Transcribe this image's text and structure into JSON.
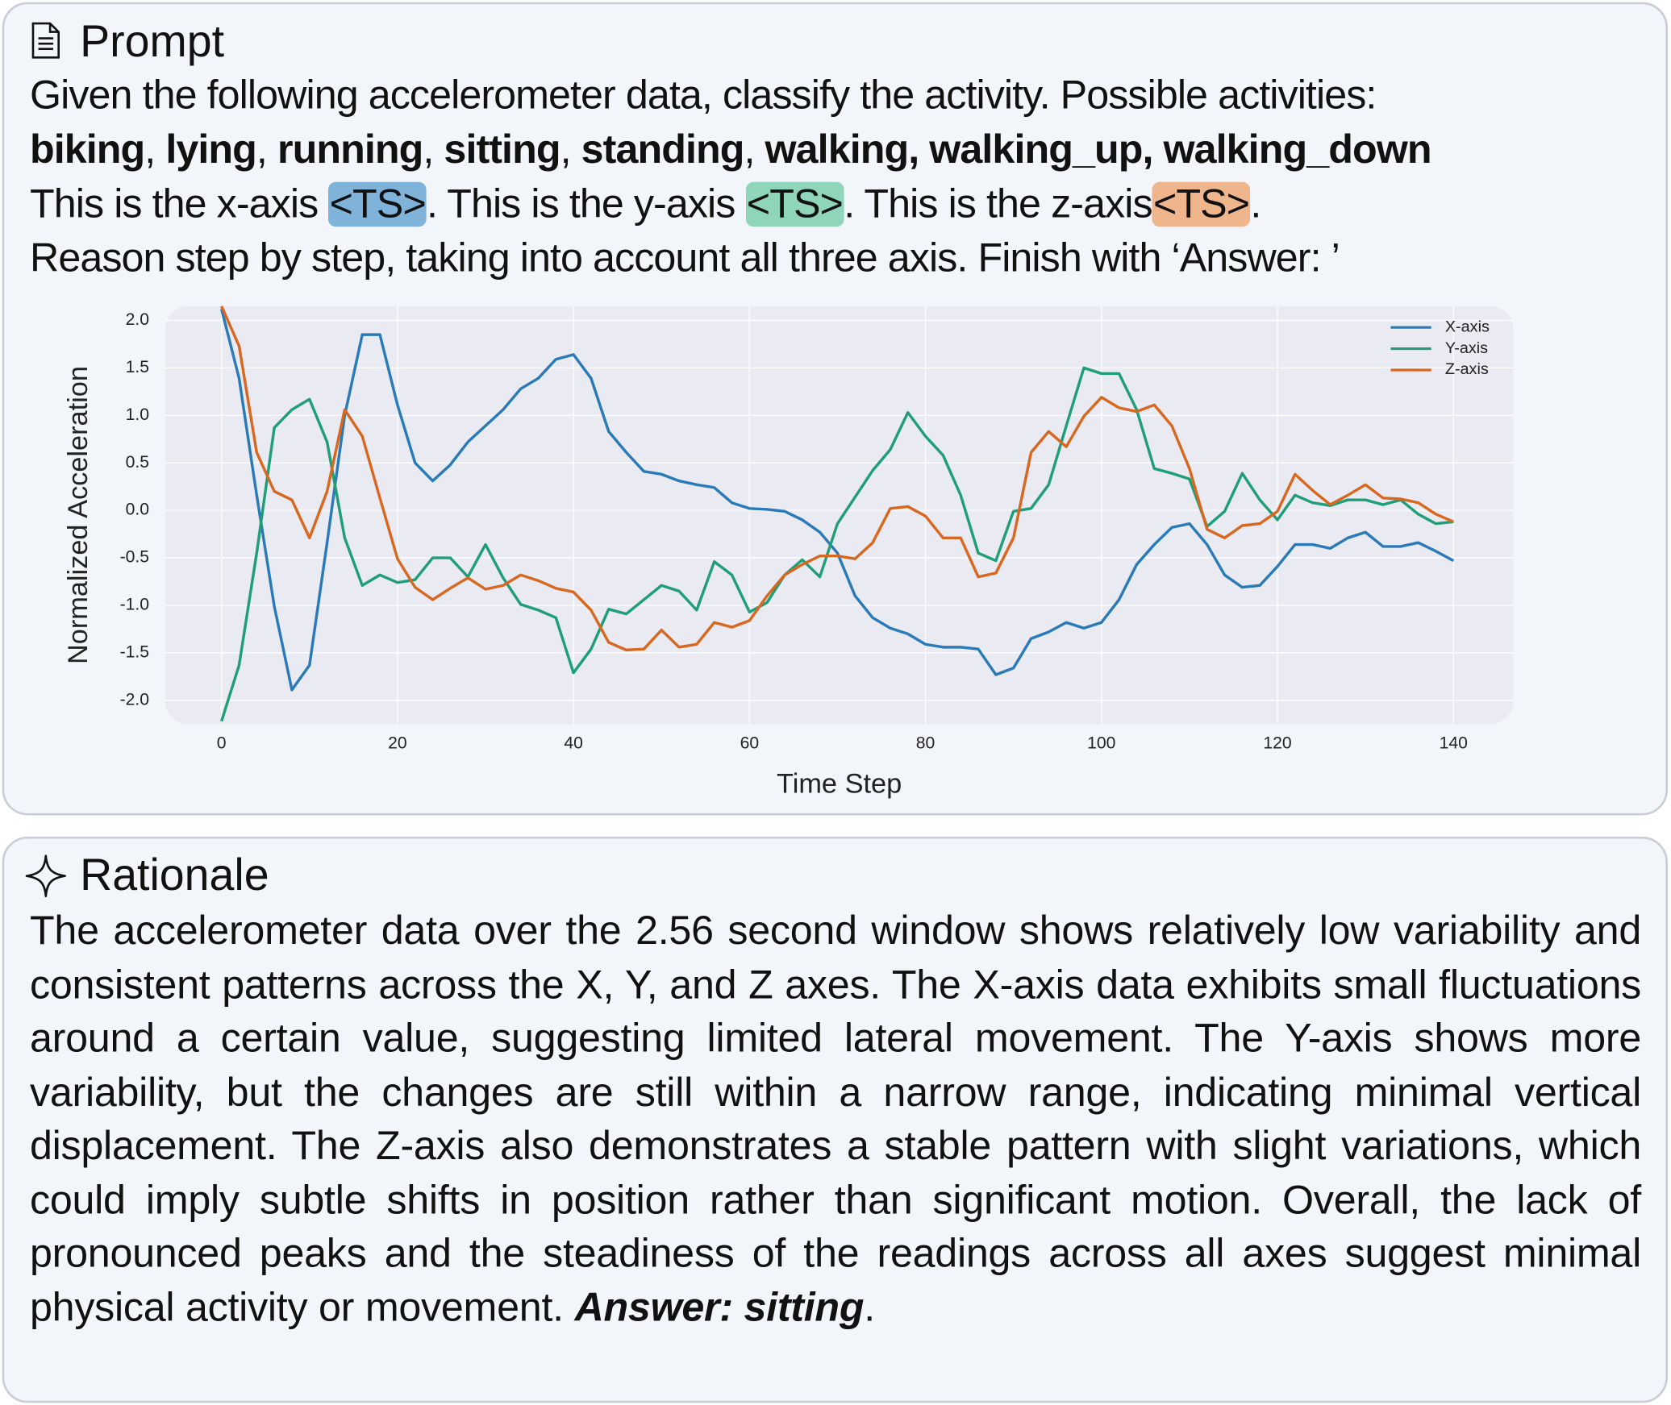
{
  "prompt": {
    "title": "Prompt",
    "lines": [
      [
        {
          "text": "Given the following accelerometer data, classify the activity. Possible activities:"
        }
      ],
      [
        {
          "text": "biking",
          "style": "bold"
        },
        {
          "text": ", "
        },
        {
          "text": "lying",
          "style": "bold"
        },
        {
          "text": ", "
        },
        {
          "text": "running",
          "style": "bold"
        },
        {
          "text": ", "
        },
        {
          "text": "sitting",
          "style": "bold"
        },
        {
          "text": ", "
        },
        {
          "text": "standing",
          "style": "bold"
        },
        {
          "text": ", "
        },
        {
          "text": "walking, walking_up, walking_down",
          "style": "bold"
        }
      ],
      [
        {
          "text": "This is the x-axis "
        },
        {
          "text": "<TS>",
          "highlight": "#7fb3d9"
        },
        {
          "text": ". This is the y-axis "
        },
        {
          "text": "<TS>",
          "highlight": "#8fd5ba"
        },
        {
          "text": ". This is the z-axis"
        },
        {
          "text": "<TS>",
          "highlight": "#efb68e"
        },
        {
          "text": "."
        }
      ],
      [
        {
          "text": "Reason step by step, taking into account all three axis. Finish with ‘Answer: ’"
        }
      ]
    ]
  },
  "chart_data": {
    "type": "line",
    "xlabel": "Time Step",
    "ylabel": "Normalized Acceleration",
    "x": [
      0,
      2,
      4,
      6,
      8,
      10,
      12,
      14,
      16,
      18,
      20,
      22,
      24,
      26,
      28,
      30,
      32,
      34,
      36,
      38,
      40,
      42,
      44,
      46,
      48,
      50,
      52,
      54,
      56,
      58,
      60,
      62,
      64,
      66,
      68,
      70,
      72,
      74,
      76,
      78,
      80,
      82,
      84,
      86,
      88,
      90,
      92,
      94,
      96,
      98,
      100,
      102,
      104,
      106,
      108,
      110,
      112,
      114,
      116,
      118,
      120,
      122,
      124,
      126,
      128,
      130,
      132,
      134,
      136,
      138,
      140
    ],
    "series": [
      {
        "name": "X-axis",
        "color": "#2a7ab8",
        "values": [
          2.12,
          1.39,
          0.16,
          -1.01,
          -1.89,
          -1.63,
          -0.34,
          1.0,
          1.85,
          1.85,
          1.11,
          0.5,
          0.31,
          0.48,
          0.72,
          0.89,
          1.06,
          1.28,
          1.39,
          1.59,
          1.64,
          1.39,
          0.83,
          0.61,
          0.41,
          0.38,
          0.31,
          0.27,
          0.24,
          0.08,
          0.02,
          0.01,
          -0.01,
          -0.1,
          -0.23,
          -0.45,
          -0.9,
          -1.13,
          -1.24,
          -1.3,
          -1.41,
          -1.44,
          -1.44,
          -1.46,
          -1.73,
          -1.66,
          -1.35,
          -1.28,
          -1.18,
          -1.24,
          -1.18,
          -0.94,
          -0.57,
          -0.36,
          -0.18,
          -0.14,
          -0.36,
          -0.68,
          -0.81,
          -0.79,
          -0.59,
          -0.36,
          -0.36,
          -0.4,
          -0.29,
          -0.23,
          -0.38,
          -0.38,
          -0.34,
          -0.43,
          -0.53
        ]
      },
      {
        "name": "Y-axis",
        "color": "#1f9e78",
        "values": [
          -2.22,
          -1.63,
          -0.45,
          0.87,
          1.06,
          1.17,
          0.72,
          -0.29,
          -0.79,
          -0.68,
          -0.76,
          -0.73,
          -0.5,
          -0.5,
          -0.7,
          -0.36,
          -0.71,
          -0.99,
          -1.05,
          -1.13,
          -1.71,
          -1.46,
          -1.04,
          -1.09,
          -0.94,
          -0.79,
          -0.85,
          -1.05,
          -0.54,
          -0.68,
          -1.07,
          -0.97,
          -0.68,
          -0.52,
          -0.7,
          -0.14,
          0.14,
          0.42,
          0.64,
          1.03,
          0.78,
          0.58,
          0.16,
          -0.45,
          -0.53,
          -0.01,
          0.02,
          0.27,
          0.89,
          1.5,
          1.44,
          1.44,
          1.06,
          0.44,
          0.39,
          0.33,
          -0.17,
          -0.01,
          0.39,
          0.11,
          -0.1,
          0.16,
          0.08,
          0.05,
          0.11,
          0.11,
          0.06,
          0.11,
          -0.04,
          -0.14,
          -0.12
        ]
      },
      {
        "name": "Z-axis",
        "color": "#d8671f",
        "values": [
          2.15,
          1.73,
          0.61,
          0.2,
          0.11,
          -0.29,
          0.2,
          1.06,
          0.78,
          0.13,
          -0.51,
          -0.81,
          -0.94,
          -0.82,
          -0.71,
          -0.83,
          -0.79,
          -0.68,
          -0.74,
          -0.82,
          -0.86,
          -1.05,
          -1.39,
          -1.47,
          -1.46,
          -1.26,
          -1.44,
          -1.41,
          -1.18,
          -1.23,
          -1.16,
          -0.9,
          -0.68,
          -0.57,
          -0.48,
          -0.48,
          -0.51,
          -0.34,
          0.02,
          0.04,
          -0.06,
          -0.29,
          -0.29,
          -0.7,
          -0.66,
          -0.29,
          0.61,
          0.83,
          0.67,
          0.99,
          1.19,
          1.08,
          1.04,
          1.11,
          0.89,
          0.44,
          -0.2,
          -0.29,
          -0.16,
          -0.14,
          -0.01,
          0.38,
          0.21,
          0.06,
          0.16,
          0.27,
          0.13,
          0.12,
          0.08,
          -0.04,
          -0.12
        ]
      }
    ],
    "xlim": [
      -6.4,
      146.8
    ],
    "ylim": [
      -2.25,
      2.15
    ],
    "xticks": [
      0,
      20,
      40,
      60,
      80,
      100,
      120,
      140
    ],
    "yticks": [
      {
        "value": 2,
        "label": "2.0"
      },
      1.5,
      {
        "value": 1,
        "label": "1.0"
      },
      0.5,
      {
        "value": 0,
        "label": "0.0"
      },
      -0.5,
      {
        "value": -1,
        "label": "-1.0"
      },
      -1.5,
      {
        "value": -2,
        "label": "-2.0"
      }
    ],
    "grid": true,
    "legend": "upper right",
    "background": "#e9eaf2"
  },
  "rationale": {
    "title": "Rationale",
    "segments": [
      {
        "text": "The accelerometer data over the 2.56 second window shows relatively low variability and consistent patterns across the X, Y, and Z axes. The X-axis data exhibits small fluctuations around a certain value, suggesting limited lateral movement. The Y-axis shows more variability, but the changes are still within a narrow range, indicating minimal vertical displacement. The Z-axis also demonstrates a stable pattern with slight variations, which could imply subtle shifts in position rather than significant motion. Overall, the lack of pronounced peaks and the steadiness of the readings across all axes suggest minimal physical activity or movement. "
      },
      {
        "text": "Answer: sitting",
        "style": "bolditalic"
      },
      {
        "text": "."
      }
    ]
  }
}
